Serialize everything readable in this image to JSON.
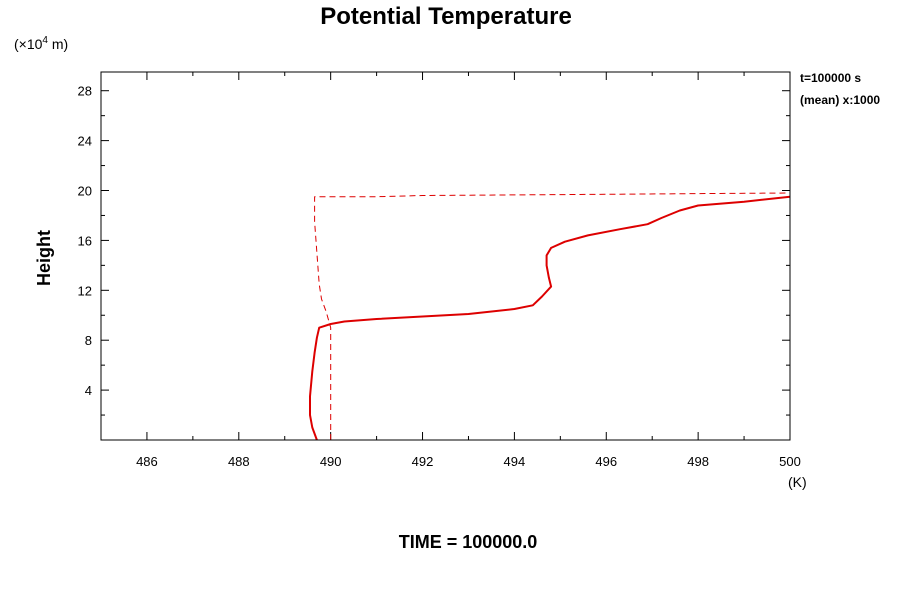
{
  "chart_data": {
    "type": "line",
    "title": "Potential Temperature",
    "ylabel": "Height",
    "xunit": "(K)",
    "yunit_prefix": "(×10",
    "yunit_exp": "4",
    "yunit_suffix": " m)",
    "annotation_line1": "t=100000 s",
    "annotation_line2": "(mean) x:1000",
    "time_label": "TIME = 100000.0",
    "xlim": [
      485,
      500
    ],
    "ylim": [
      0,
      29.5
    ],
    "xticks": [
      486,
      488,
      490,
      492,
      494,
      496,
      498,
      500
    ],
    "yticks": [
      4,
      8,
      12,
      16,
      20,
      24,
      28
    ],
    "series": [
      {
        "style": "solid",
        "color": "#dd0000",
        "points": [
          [
            489.7,
            0
          ],
          [
            489.6,
            1
          ],
          [
            489.55,
            2
          ],
          [
            489.55,
            3.5
          ],
          [
            489.6,
            5.5
          ],
          [
            489.65,
            7
          ],
          [
            489.7,
            8.2
          ],
          [
            489.75,
            9.0
          ],
          [
            490.0,
            9.3
          ],
          [
            490.3,
            9.5
          ],
          [
            491.0,
            9.7
          ],
          [
            492.0,
            9.9
          ],
          [
            493.0,
            10.1
          ],
          [
            494.0,
            10.5
          ],
          [
            494.4,
            10.8
          ],
          [
            494.6,
            11.5
          ],
          [
            494.8,
            12.3
          ],
          [
            494.75,
            13.0
          ],
          [
            494.7,
            14.0
          ],
          [
            494.7,
            14.8
          ],
          [
            494.8,
            15.4
          ],
          [
            495.1,
            15.9
          ],
          [
            495.6,
            16.4
          ],
          [
            496.3,
            16.9
          ],
          [
            496.9,
            17.3
          ],
          [
            497.2,
            17.8
          ],
          [
            497.6,
            18.4
          ],
          [
            498.0,
            18.8
          ],
          [
            499.0,
            19.1
          ],
          [
            500.0,
            19.5
          ]
        ]
      },
      {
        "style": "dashed",
        "color": "#dd0000",
        "points": [
          [
            490.0,
            0
          ],
          [
            490.0,
            9.0
          ],
          [
            489.9,
            10.3
          ],
          [
            489.8,
            11.3
          ],
          [
            489.75,
            12.5
          ],
          [
            489.7,
            15.0
          ],
          [
            489.65,
            17.5
          ],
          [
            489.65,
            19.5
          ],
          [
            491.0,
            19.5
          ],
          [
            492.0,
            19.6
          ],
          [
            494.0,
            19.65
          ],
          [
            496.0,
            19.7
          ],
          [
            498.0,
            19.75
          ],
          [
            500.0,
            19.8
          ]
        ]
      }
    ]
  }
}
